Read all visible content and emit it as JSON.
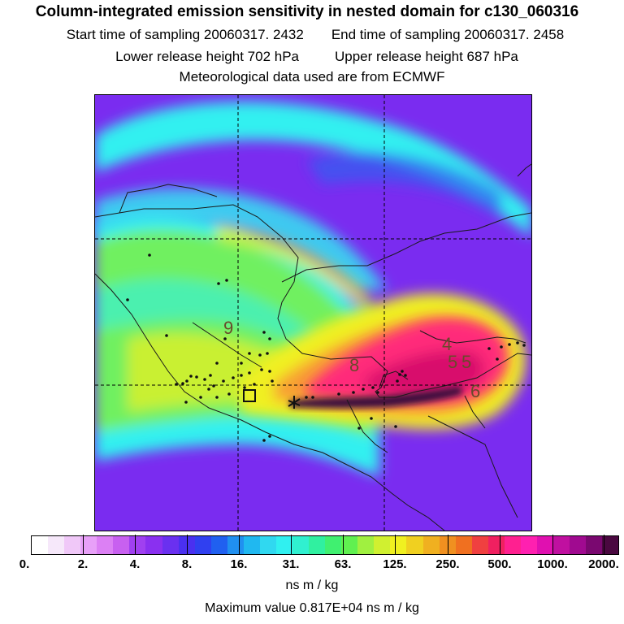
{
  "header": {
    "title": "Column-integrated emission sensitivity in nested domain for c130_060316",
    "start_label": "Start time of sampling 20060317.  2432",
    "end_label": "End time of sampling 20060317.  2458",
    "lower_label": "Lower release height  702 hPa",
    "upper_label": "Upper release height  687 hPa",
    "met_label": "Meteorological data used are from ECMWF"
  },
  "map": {
    "contour_labels": [
      "9",
      "8",
      "4",
      "5",
      "5",
      "6"
    ],
    "colors": {
      "background": "#7a2cf0",
      "band_cyan": "#30f0f0",
      "band_green": "#70f060",
      "band_yellow": "#f0f020",
      "plume_core": "#ff2c7a",
      "plume_center": "#d8106c",
      "trail_dark": "#3a0f3c"
    }
  },
  "colorbar": {
    "tick_labels": [
      "0.",
      "2.",
      "4.",
      "8.",
      "16.",
      "31.",
      "63.",
      "125.",
      "250.",
      "500.",
      "1000.",
      "2000."
    ],
    "colors": [
      "#ffffff",
      "#f6e8fa",
      "#f0c8f8",
      "#e8a0f8",
      "#dc80f4",
      "#c860f0",
      "#a040f0",
      "#8a30f0",
      "#6a30f0",
      "#4a30f0",
      "#3040f0",
      "#2060f0",
      "#2090f0",
      "#20b8f0",
      "#30d8f0",
      "#30f0f0",
      "#30f0d0",
      "#30f0a0",
      "#40f070",
      "#60f050",
      "#a0f040",
      "#d0f030",
      "#f0f020",
      "#f0d020",
      "#f0b020",
      "#f09020",
      "#f07020",
      "#f04040",
      "#f02060",
      "#ff2090",
      "#ff20b0",
      "#e010b0",
      "#c010a0",
      "#a00a90",
      "#7a0870",
      "#4a0840"
    ],
    "units": "ns m / kg"
  },
  "max_value": "Maximum value  0.817E+04 ns m / kg"
}
